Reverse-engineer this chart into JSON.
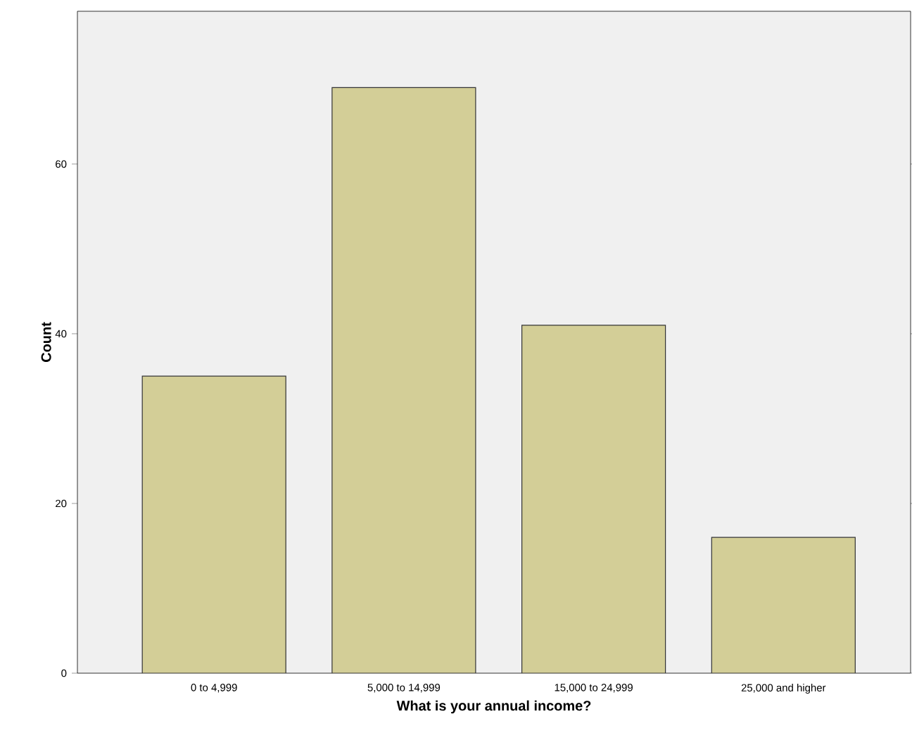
{
  "chart_data": {
    "type": "bar",
    "xlabel": "What is your annual income?",
    "ylabel": "Count",
    "categories": [
      "0 to 4,999",
      "5,000 to 14,999",
      "15,000 to 24,999",
      "25,000 and higher"
    ],
    "values": [
      35,
      69,
      41,
      16
    ],
    "color": "#d3ce97",
    "ylim": [
      0,
      78
    ],
    "yticks": [
      0,
      20,
      40,
      60
    ],
    "grid": false
  }
}
